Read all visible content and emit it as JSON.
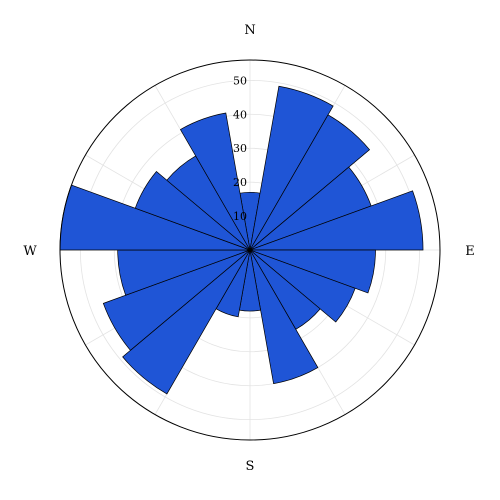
{
  "chart_data": {
    "type": "bar",
    "subtype": "polar-rose",
    "directions": [
      "N",
      "E",
      "S",
      "W"
    ],
    "angle_unit": "degrees",
    "angle_zero": "north",
    "angle_direction": "clockwise",
    "sector_width_deg": 20,
    "sector_centers_deg": [
      0,
      20,
      40,
      60,
      80,
      100,
      120,
      140,
      160,
      180,
      200,
      220,
      240,
      260,
      280,
      300,
      320,
      340
    ],
    "values": [
      17,
      49,
      46,
      38,
      51,
      37,
      33,
      27,
      40,
      18,
      20,
      49,
      46,
      39,
      56,
      36,
      32,
      41
    ],
    "r_ticks": [
      "10",
      "20",
      "30",
      "40",
      "50"
    ],
    "r_tick_values": [
      10,
      20,
      30,
      40,
      50
    ],
    "rlim": [
      0,
      56
    ],
    "grid": true,
    "bar_color": "#1f55d6",
    "edge_color": "#000000"
  }
}
